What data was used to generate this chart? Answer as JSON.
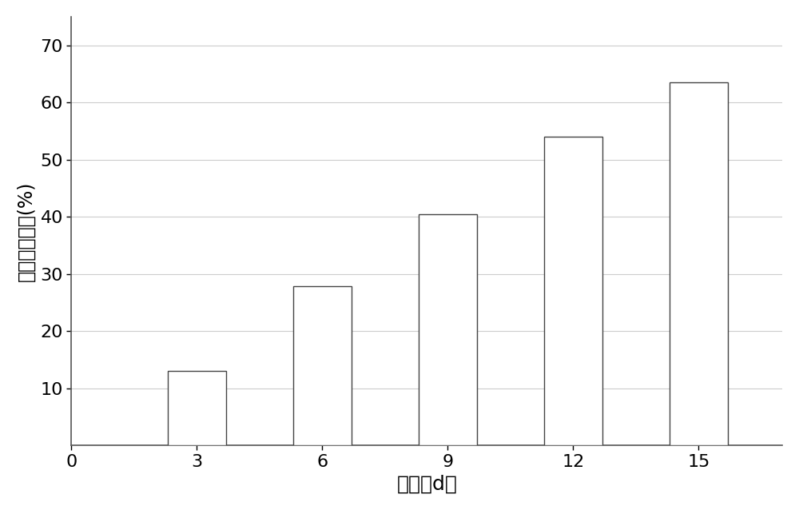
{
  "x_values": [
    3,
    6,
    9,
    12,
    15
  ],
  "y_values": [
    13.0,
    27.8,
    40.5,
    54.0,
    63.5
  ],
  "bar_color": "#ffffff",
  "bar_edgecolor": "#444444",
  "bar_linewidth": 1.0,
  "bar_width": 1.4,
  "xlabel": "时间（d）",
  "ylabel": "石油烃降解率(%)",
  "xlim": [
    0,
    17
  ],
  "ylim": [
    0,
    75
  ],
  "xticks": [
    0,
    3,
    6,
    9,
    12,
    15
  ],
  "yticks": [
    10,
    20,
    30,
    40,
    50,
    60,
    70
  ],
  "background_color": "#ffffff",
  "axes_background": "#ffffff",
  "grid_color": "#cccccc",
  "grid_linewidth": 0.8,
  "xlabel_fontsize": 18,
  "ylabel_fontsize": 17,
  "tick_fontsize": 16,
  "spine_color": "#555555"
}
